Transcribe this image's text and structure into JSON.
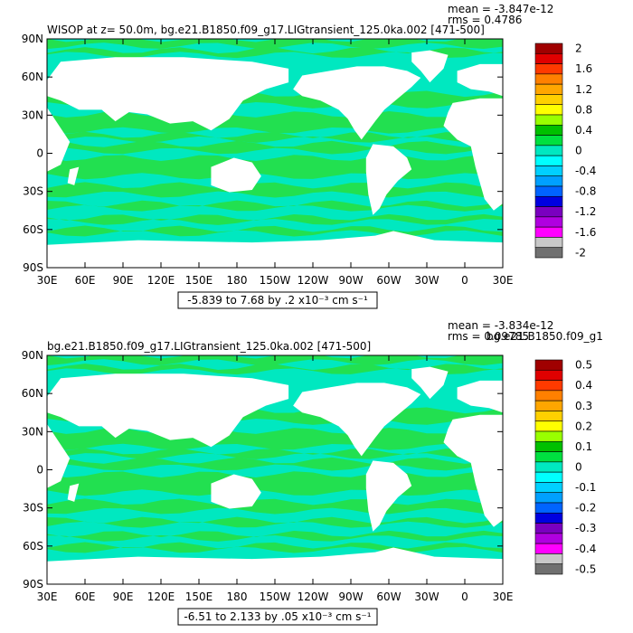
{
  "chart_data": [
    {
      "type": "heatmap",
      "title": "WISOP at z=  50.0m, bg.e21.B1850.f09_g17.LIGtransient_125.0ka.002 [471-500]",
      "stats": {
        "mean": "mean = -3.847e-12",
        "rms": "rms = 0.4786"
      },
      "range_label": "-5.839 to 7.68 by .2 x10⁻³ cm s⁻¹",
      "x_ticks": [
        "30E",
        "60E",
        "90E",
        "120E",
        "150E",
        "180",
        "150W",
        "120W",
        "90W",
        "60W",
        "30W",
        "0",
        "30E"
      ],
      "y_ticks": [
        "90N",
        "60N",
        "30N",
        "0",
        "30S",
        "60S",
        "90S"
      ],
      "colorbar": {
        "labels": [
          "2",
          "1.6",
          "1.2",
          "0.8",
          "0.4",
          "0",
          "-0.4",
          "-0.8",
          "-1.2",
          "-1.6",
          "-2"
        ],
        "colors": [
          "#a00000",
          "#e00000",
          "#ff3a00",
          "#ff8000",
          "#ffa600",
          "#ffd000",
          "#ffff00",
          "#99ff00",
          "#00c000",
          "#00e040",
          "#00e8c0",
          "#00ffff",
          "#00d0ff",
          "#00a0ff",
          "#0064ff",
          "#0000e0",
          "#7a00c0",
          "#b000e0",
          "#ff00ff",
          "#c8c8c8",
          "#707070"
        ]
      }
    },
    {
      "type": "heatmap",
      "title": "bg.e21.B1850.f09_g17.LIGtransient_125.0ka.002 [471-500]",
      "title_overlap": "bg.e21.B1850.f09_g1",
      "stats": {
        "mean": "mean = -3.834e-12",
        "rms": "rms = 0.09785"
      },
      "range_label": "-6.51 to 2.133 by .05 x10⁻³ cm s⁻¹",
      "x_ticks": [
        "30E",
        "60E",
        "90E",
        "120E",
        "150E",
        "180",
        "150W",
        "120W",
        "90W",
        "60W",
        "30W",
        "0",
        "30E"
      ],
      "y_ticks": [
        "90N",
        "60N",
        "30N",
        "0",
        "30S",
        "60S",
        "90S"
      ],
      "colorbar": {
        "labels": [
          "0.5",
          "0.4",
          "0.3",
          "0.2",
          "0.1",
          "0",
          "-0.1",
          "-0.2",
          "-0.3",
          "-0.4",
          "-0.5"
        ],
        "colors": [
          "#a00000",
          "#e00000",
          "#ff3a00",
          "#ff8000",
          "#ffa600",
          "#ffd000",
          "#ffff00",
          "#99ff00",
          "#00c000",
          "#00e040",
          "#00e8c0",
          "#00ffff",
          "#00d0ff",
          "#00a0ff",
          "#0064ff",
          "#0000e0",
          "#7a00c0",
          "#b000e0",
          "#ff00ff",
          "#c8c8c8",
          "#707070"
        ]
      }
    }
  ],
  "colors": {
    "ocean_main": "#00e8c0",
    "ocean_band": "#22e050",
    "land": "#ffffff"
  }
}
